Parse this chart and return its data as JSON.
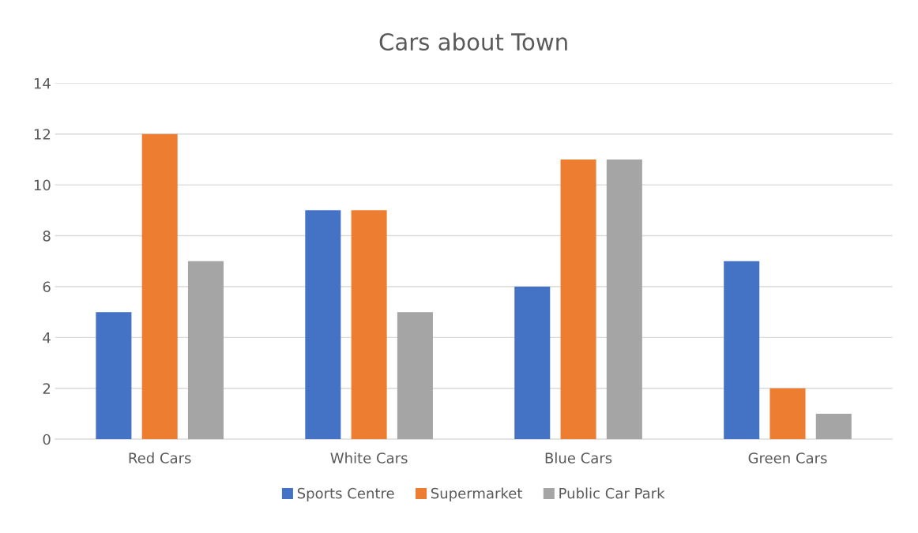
{
  "chart_data": {
    "type": "bar",
    "title": "Cars about Town",
    "categories": [
      "Red Cars",
      "White Cars",
      "Blue Cars",
      "Green Cars"
    ],
    "series": [
      {
        "name": "Sports Centre",
        "color": "#4472c4",
        "values": [
          5,
          9,
          6,
          7
        ]
      },
      {
        "name": "Supermarket",
        "color": "#ed7d31",
        "values": [
          12,
          9,
          11,
          2
        ]
      },
      {
        "name": "Public Car Park",
        "color": "#a5a5a5",
        "values": [
          7,
          5,
          11,
          1
        ]
      }
    ],
    "ylim": [
      0,
      14
    ],
    "yticks": [
      0,
      2,
      4,
      6,
      8,
      10,
      12,
      14
    ],
    "grid": "y",
    "legend": "bottom"
  }
}
